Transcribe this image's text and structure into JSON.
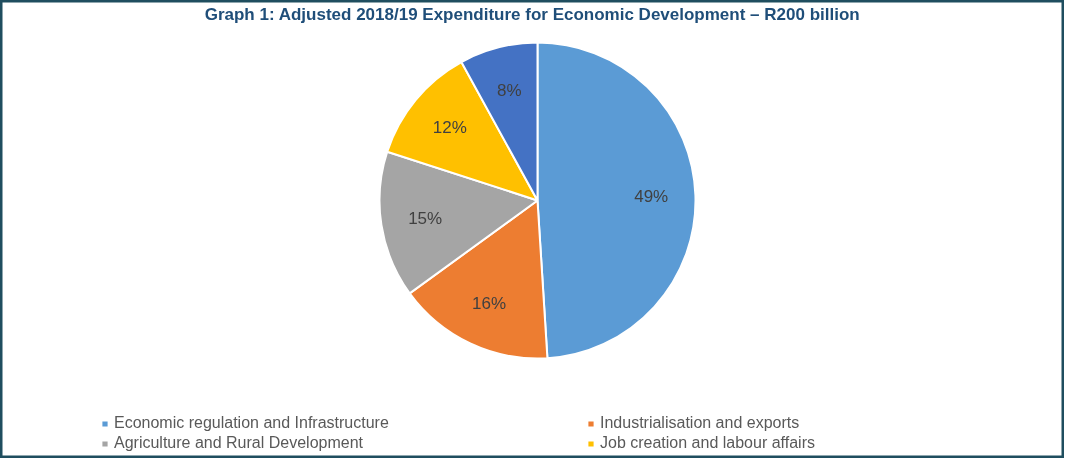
{
  "chart_data": {
    "type": "pie",
    "title": "Graph 1: Adjusted 2018/19 Expenditure for Economic Development – R200 billion",
    "categories": [
      "Economic regulation and Infrastructure",
      "Industrialisation and exports",
      "Agriculture and Rural Development",
      "Job creation and labour affairs",
      null
    ],
    "values": [
      49,
      16,
      15,
      12,
      8
    ],
    "value_labels": [
      "49%",
      "16%",
      "15%",
      "12%",
      "8%"
    ],
    "colors": [
      "#5b9bd5",
      "#ed7d31",
      "#a5a5a5",
      "#ffc000",
      "#4472c4"
    ],
    "legend": "bottom"
  }
}
